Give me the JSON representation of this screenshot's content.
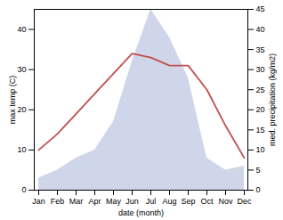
{
  "chart_data": {
    "type": "line",
    "xlabel": "date (month)",
    "ylabel": "max temp (C)",
    "y2label": "med. precipitation (kg/m2)",
    "categories": [
      "Jan",
      "Feb",
      "Mar",
      "Apr",
      "May",
      "Jun",
      "Jul",
      "Aug",
      "Sep",
      "Oct",
      "Nov",
      "Dec"
    ],
    "series": [
      {
        "type": "area",
        "axis": "y2",
        "color": "#aab4d8",
        "values": [
          3,
          5,
          8,
          10,
          17,
          32,
          45,
          38,
          28,
          8,
          5,
          6
        ]
      },
      {
        "type": "line",
        "color": "#c0504d",
        "values": [
          10,
          14,
          19,
          24,
          29,
          34,
          33,
          31,
          31,
          25,
          16,
          8
        ]
      }
    ],
    "ylim": [
      0,
      45
    ],
    "yticks": [
      0,
      10,
      20,
      30,
      40
    ],
    "y2lim": [
      0,
      45
    ],
    "y2ticks": [
      0,
      5,
      10,
      15,
      20,
      25,
      30,
      35,
      40,
      45
    ],
    "grid": false
  }
}
